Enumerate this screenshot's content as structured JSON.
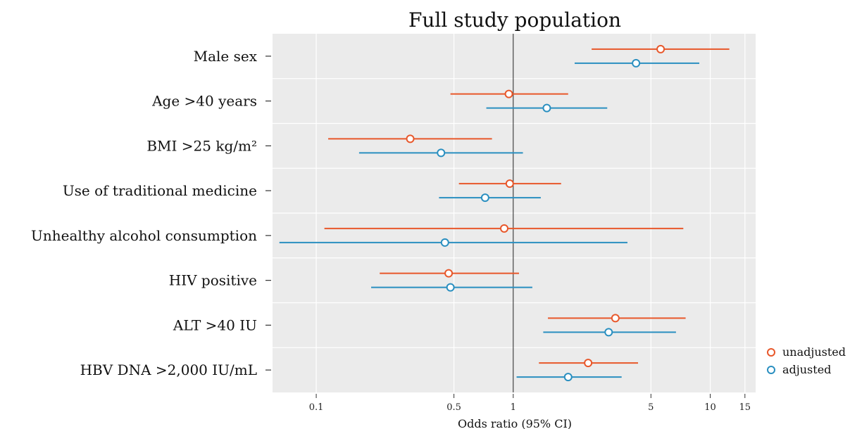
{
  "chart_data": {
    "type": "scatter",
    "subtype": "forest-plot",
    "title": "Full study population",
    "xlabel": "Odds ratio (95% CI)",
    "ylabel": "",
    "x_scale": "log",
    "xlim": [
      0.06,
      17
    ],
    "xticks": [
      0.1,
      0.5,
      1,
      5,
      10,
      15
    ],
    "xtick_labels": [
      "0.1",
      "0.5",
      "1",
      "5",
      "10",
      "15"
    ],
    "reference_line": 1,
    "grid": true,
    "legend_position": "bottom-right",
    "categories": [
      "Male sex",
      "Age >40 years",
      "BMI >25 kg/m²",
      "Use of traditional medicine",
      "Unhealthy alcohol consumption",
      "HIV positive",
      "ALT >40 IU",
      "HBV DNA >2,000 IU/mL"
    ],
    "series": [
      {
        "name": "unadjusted",
        "color": "#e8572a",
        "values": [
          {
            "or": 5.6,
            "low": 2.5,
            "high": 12.5
          },
          {
            "or": 0.95,
            "low": 0.48,
            "high": 1.9
          },
          {
            "or": 0.3,
            "low": 0.115,
            "high": 0.78
          },
          {
            "or": 0.96,
            "low": 0.53,
            "high": 1.75
          },
          {
            "or": 0.9,
            "low": 0.11,
            "high": 7.3
          },
          {
            "or": 0.47,
            "low": 0.21,
            "high": 1.07
          },
          {
            "or": 3.3,
            "low": 1.5,
            "high": 7.5
          },
          {
            "or": 2.4,
            "low": 1.35,
            "high": 4.3
          }
        ]
      },
      {
        "name": "adjusted",
        "color": "#2a8fc0",
        "values": [
          {
            "or": 4.2,
            "low": 2.05,
            "high": 8.8
          },
          {
            "or": 1.48,
            "low": 0.73,
            "high": 3.0
          },
          {
            "or": 0.43,
            "low": 0.165,
            "high": 1.12
          },
          {
            "or": 0.72,
            "low": 0.42,
            "high": 1.38
          },
          {
            "or": 0.45,
            "low": 0.065,
            "high": 3.8
          },
          {
            "or": 0.48,
            "low": 0.19,
            "high": 1.25
          },
          {
            "or": 3.05,
            "low": 1.42,
            "high": 6.7
          },
          {
            "or": 1.9,
            "low": 1.04,
            "high": 3.55
          }
        ]
      }
    ]
  }
}
